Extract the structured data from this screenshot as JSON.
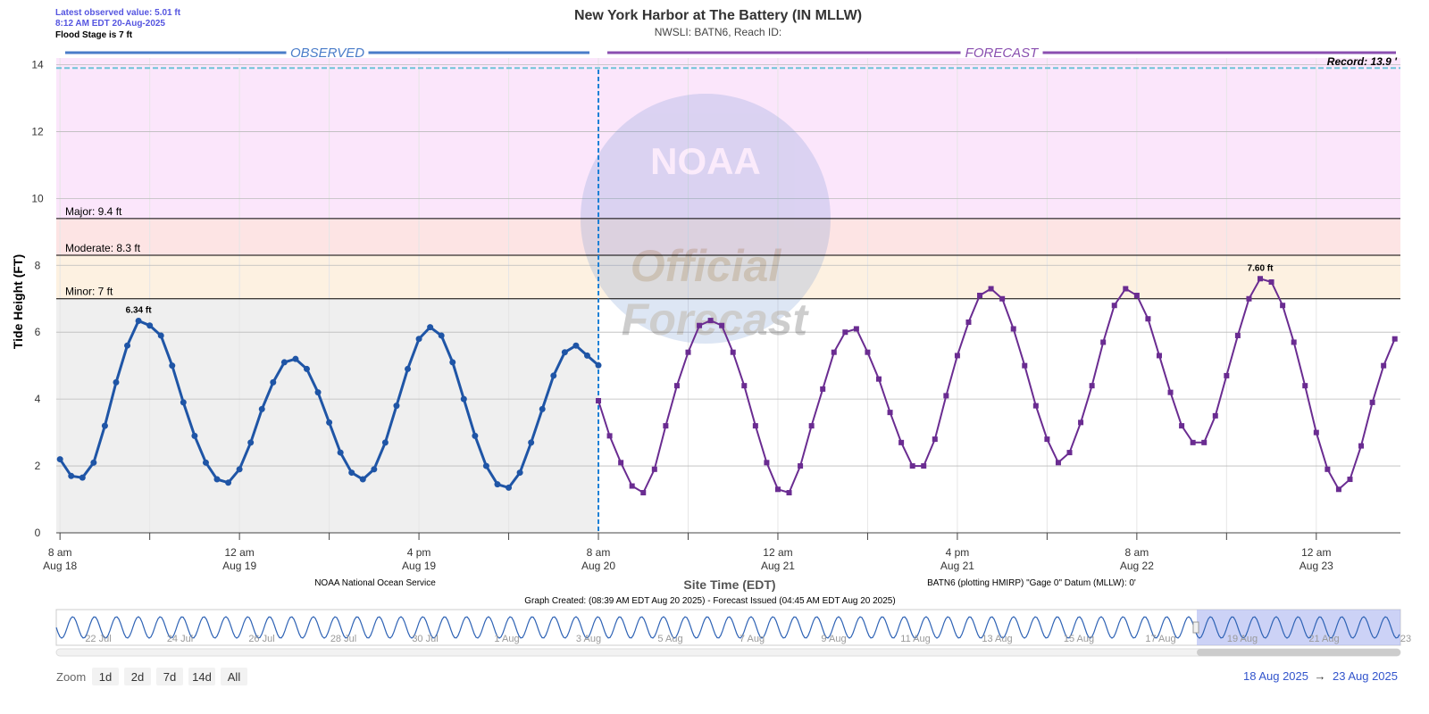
{
  "header": {
    "latest": "Latest observed value: 5.01 ft",
    "latest_time": "8:12 AM EDT 20-Aug-2025",
    "flood_stage": "Flood Stage is 7 ft"
  },
  "chart_data": {
    "type": "line",
    "title": "New York Harbor at The Battery (IN MLLW)",
    "subtitle": "NWSLI: BATN6, Reach ID:",
    "y_label": "Tide Height (FT)",
    "x_label": "Site Time (EDT)",
    "sections": [
      {
        "name": "OBSERVED",
        "color": "#4a7cc9"
      },
      {
        "name": "FORECAST",
        "color": "#8a4fb0"
      }
    ],
    "divider": "2025-08-20 08:00",
    "xlim": [
      "2025-08-18 07:40",
      "2025-08-23 07:30"
    ],
    "ylim": [
      0,
      14.2
    ],
    "yticks": [
      0,
      2,
      4,
      6,
      8,
      10,
      12,
      14
    ],
    "grid": true,
    "xticks": [
      {
        "value": "2025-08-18 08:00",
        "label": "8 am",
        "date": "Aug 18"
      },
      {
        "value": "2025-08-18 16:00",
        "label": null
      },
      {
        "value": "2025-08-19 00:00",
        "label": "12 am",
        "date": "Aug 19"
      },
      {
        "value": "2025-08-19 08:00",
        "label": null
      },
      {
        "value": "2025-08-19 16:00",
        "label": "4 pm",
        "date": "Aug 19"
      },
      {
        "value": "2025-08-20 00:00",
        "label": null
      },
      {
        "value": "2025-08-20 08:00",
        "label": "8 am",
        "date": "Aug 20"
      },
      {
        "value": "2025-08-20 16:00",
        "label": null
      },
      {
        "value": "2025-08-21 00:00",
        "label": "12 am",
        "date": "Aug 21"
      },
      {
        "value": "2025-08-21 08:00",
        "label": null
      },
      {
        "value": "2025-08-21 16:00",
        "label": "4 pm",
        "date": "Aug 21"
      },
      {
        "value": "2025-08-22 00:00",
        "label": null
      },
      {
        "value": "2025-08-22 08:00",
        "label": "8 am",
        "date": "Aug 22"
      },
      {
        "value": "2025-08-22 16:00",
        "label": null
      },
      {
        "value": "2025-08-23 00:00",
        "label": "12 am",
        "date": "Aug 23"
      }
    ],
    "thresholds": [
      {
        "label": "Minor: 7 ft",
        "value": 7,
        "color": "#fdf1e1"
      },
      {
        "label": "Moderate: 8.3 ft",
        "value": 8.3,
        "color": "#fde4e4"
      },
      {
        "label": "Major: 9.4 ft",
        "value": 9.4,
        "color": "#fbe6fb"
      }
    ],
    "observed_shade": "#efefef",
    "record": {
      "label": "Record: 13.9 '",
      "value": 13.9,
      "color": "#6fc3d8"
    },
    "series": [
      {
        "name": "Observed",
        "color": "#1f55a6",
        "marker": "circle",
        "x": [
          "2025-08-18 08:00",
          "2025-08-18 09:00",
          "2025-08-18 10:00",
          "2025-08-18 11:00",
          "2025-08-18 12:00",
          "2025-08-18 13:00",
          "2025-08-18 14:00",
          "2025-08-18 15:00",
          "2025-08-18 16:00",
          "2025-08-18 17:00",
          "2025-08-18 18:00",
          "2025-08-18 19:00",
          "2025-08-18 20:00",
          "2025-08-18 21:00",
          "2025-08-18 22:00",
          "2025-08-18 23:00",
          "2025-08-19 00:00",
          "2025-08-19 01:00",
          "2025-08-19 02:00",
          "2025-08-19 03:00",
          "2025-08-19 04:00",
          "2025-08-19 05:00",
          "2025-08-19 06:00",
          "2025-08-19 07:00",
          "2025-08-19 08:00",
          "2025-08-19 09:00",
          "2025-08-19 10:00",
          "2025-08-19 11:00",
          "2025-08-19 12:00",
          "2025-08-19 13:00",
          "2025-08-19 14:00",
          "2025-08-19 15:00",
          "2025-08-19 16:00",
          "2025-08-19 17:00",
          "2025-08-19 18:00",
          "2025-08-19 19:00",
          "2025-08-19 20:00",
          "2025-08-19 21:00",
          "2025-08-19 22:00",
          "2025-08-19 23:00",
          "2025-08-20 00:00",
          "2025-08-20 01:00",
          "2025-08-20 02:00",
          "2025-08-20 03:00",
          "2025-08-20 04:00",
          "2025-08-20 05:00",
          "2025-08-20 06:00",
          "2025-08-20 07:00",
          "2025-08-20 08:00"
        ],
        "values": [
          2.2,
          1.7,
          1.65,
          2.1,
          3.2,
          4.5,
          5.6,
          6.34,
          6.2,
          5.9,
          5.0,
          3.9,
          2.9,
          2.1,
          1.6,
          1.5,
          1.9,
          2.7,
          3.7,
          4.5,
          5.1,
          5.2,
          4.9,
          4.2,
          3.3,
          2.4,
          1.8,
          1.6,
          1.9,
          2.7,
          3.8,
          4.9,
          5.8,
          6.15,
          5.9,
          5.1,
          4.0,
          2.9,
          2.0,
          1.45,
          1.35,
          1.8,
          2.7,
          3.7,
          4.7,
          5.4,
          5.6,
          5.3,
          5.01
        ],
        "value_labels": [
          null,
          null,
          null,
          null,
          null,
          null,
          null,
          "6.34 ft",
          null,
          null,
          null,
          null,
          null,
          null,
          null,
          null,
          null,
          null,
          null,
          null,
          null,
          null,
          null,
          null,
          null,
          null,
          null,
          null,
          null,
          null,
          null,
          null,
          null,
          null,
          null,
          null,
          null,
          null,
          null,
          null,
          null,
          null,
          null,
          null,
          null,
          null,
          null,
          null,
          null
        ]
      },
      {
        "name": "Forecast",
        "color": "#6a2c91",
        "marker": "square",
        "x": [
          "2025-08-20 08:00",
          "2025-08-20 09:00",
          "2025-08-20 10:00",
          "2025-08-20 11:00",
          "2025-08-20 12:00",
          "2025-08-20 13:00",
          "2025-08-20 14:00",
          "2025-08-20 15:00",
          "2025-08-20 16:00",
          "2025-08-20 17:00",
          "2025-08-20 18:00",
          "2025-08-20 19:00",
          "2025-08-20 20:00",
          "2025-08-20 21:00",
          "2025-08-20 22:00",
          "2025-08-20 23:00",
          "2025-08-21 00:00",
          "2025-08-21 01:00",
          "2025-08-21 02:00",
          "2025-08-21 03:00",
          "2025-08-21 04:00",
          "2025-08-21 05:00",
          "2025-08-21 06:00",
          "2025-08-21 07:00",
          "2025-08-21 08:00",
          "2025-08-21 09:00",
          "2025-08-21 10:00",
          "2025-08-21 11:00",
          "2025-08-21 12:00",
          "2025-08-21 13:00",
          "2025-08-21 14:00",
          "2025-08-21 15:00",
          "2025-08-21 16:00",
          "2025-08-21 17:00",
          "2025-08-21 18:00",
          "2025-08-21 19:00",
          "2025-08-21 20:00",
          "2025-08-21 21:00",
          "2025-08-21 22:00",
          "2025-08-21 23:00",
          "2025-08-22 00:00",
          "2025-08-22 01:00",
          "2025-08-22 02:00",
          "2025-08-22 03:00",
          "2025-08-22 04:00",
          "2025-08-22 05:00",
          "2025-08-22 06:00",
          "2025-08-22 07:00",
          "2025-08-22 08:00",
          "2025-08-22 09:00",
          "2025-08-22 10:00",
          "2025-08-22 11:00",
          "2025-08-22 12:00",
          "2025-08-22 13:00",
          "2025-08-22 14:00",
          "2025-08-22 15:00",
          "2025-08-22 16:00",
          "2025-08-22 17:00",
          "2025-08-22 18:00",
          "2025-08-22 19:00",
          "2025-08-22 20:00",
          "2025-08-22 21:00",
          "2025-08-22 22:00",
          "2025-08-22 23:00",
          "2025-08-23 00:00",
          "2025-08-23 01:00",
          "2025-08-23 02:00",
          "2025-08-23 03:00",
          "2025-08-23 04:00",
          "2025-08-23 05:00",
          "2025-08-23 06:00",
          "2025-08-23 07:00"
        ],
        "values": [
          3.95,
          2.9,
          2.1,
          1.4,
          1.2,
          1.9,
          3.2,
          4.4,
          5.4,
          6.2,
          6.35,
          6.2,
          5.4,
          4.4,
          3.2,
          2.1,
          1.3,
          1.2,
          2.0,
          3.2,
          4.3,
          5.4,
          6.0,
          6.1,
          5.4,
          4.6,
          3.6,
          2.7,
          2.0,
          2.0,
          2.8,
          4.1,
          5.3,
          6.3,
          7.1,
          7.3,
          7.0,
          6.1,
          5.0,
          3.8,
          2.8,
          2.1,
          2.4,
          3.3,
          4.4,
          5.7,
          6.8,
          7.3,
          7.1,
          6.4,
          5.3,
          4.2,
          3.2,
          2.7,
          2.7,
          3.5,
          4.7,
          5.9,
          7.0,
          7.6,
          7.5,
          6.8,
          5.7,
          4.4,
          3.0,
          1.9,
          1.3,
          1.6,
          2.6,
          3.9,
          5.0,
          5.8
        ],
        "value_labels": [
          null,
          null,
          null,
          null,
          null,
          null,
          null,
          null,
          null,
          null,
          null,
          null,
          null,
          null,
          null,
          null,
          null,
          null,
          null,
          null,
          null,
          null,
          null,
          null,
          null,
          null,
          null,
          null,
          null,
          null,
          null,
          null,
          null,
          null,
          null,
          null,
          null,
          null,
          null,
          null,
          null,
          null,
          null,
          null,
          null,
          null,
          null,
          null,
          null,
          null,
          null,
          null,
          null,
          null,
          null,
          null,
          null,
          null,
          null,
          "7.60 ft",
          null,
          null,
          null,
          null,
          null,
          null,
          null,
          null,
          null,
          null,
          null,
          null
        ]
      }
    ]
  },
  "watermark": [
    "NOAA",
    "Official",
    "Forecast"
  ],
  "credits": {
    "left": "NOAA National Ocean Service",
    "right": "BATN6 (plotting HMIRP) \"Gage 0\" Datum (MLLW): 0'",
    "created": "Graph Created: (08:39 AM EDT Aug 20 2025) - Forecast Issued (04:45 AM EDT Aug 20 2025)"
  },
  "navigator": {
    "labels": [
      "22 Jul",
      "24 Jul",
      "26 Jul",
      "28 Jul",
      "30 Jul",
      "1 Aug",
      "3 Aug",
      "5 Aug",
      "7 Aug",
      "9 Aug",
      "11 Aug",
      "13 Aug",
      "15 Aug",
      "17 Aug",
      "19 Aug",
      "21 Aug",
      "23"
    ]
  },
  "zoom": {
    "label": "Zoom",
    "buttons": [
      "1d",
      "2d",
      "7d",
      "14d",
      "All"
    ]
  },
  "range": {
    "from": "18 Aug 2025",
    "arrow": "→",
    "to": "23 Aug 2025"
  }
}
